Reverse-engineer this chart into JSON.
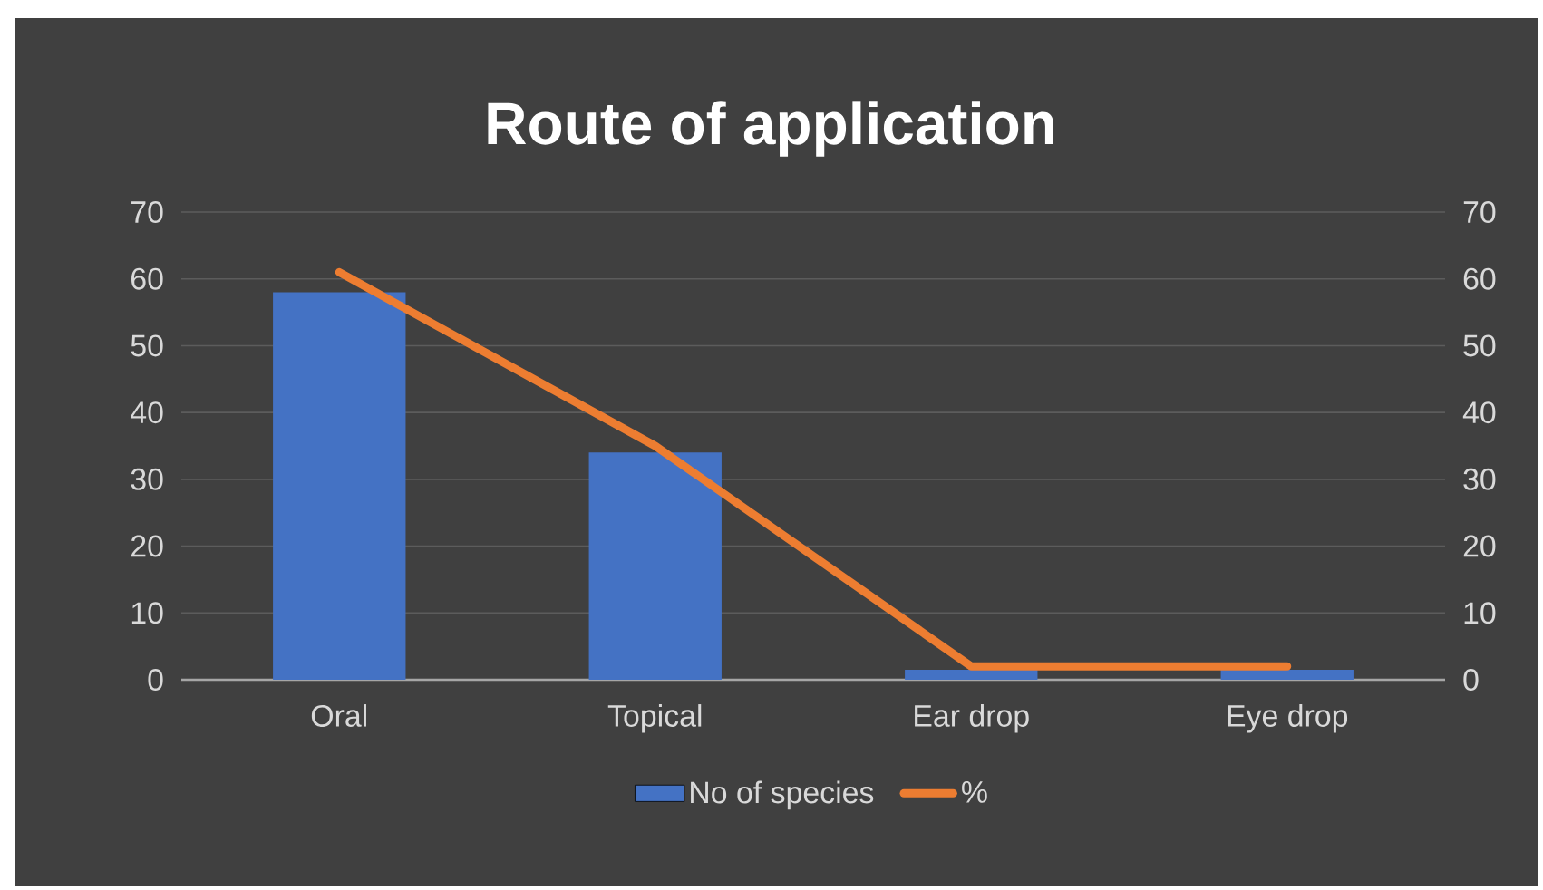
{
  "chart_data": {
    "type": "bar",
    "title": "Route of application",
    "categories": [
      "Oral",
      "Topical",
      "Ear drop",
      "Eye drop"
    ],
    "series": [
      {
        "name": "No of species",
        "color": "#4472c4",
        "values": [
          58,
          34,
          1.5,
          1.5
        ]
      },
      {
        "name": "%",
        "type": "line",
        "axis": "y2",
        "color": "#ed7d31",
        "values": [
          61,
          35,
          2,
          2
        ]
      }
    ],
    "ylim": [
      0,
      70
    ],
    "yticks": [
      0,
      10,
      20,
      30,
      40,
      50,
      60,
      70
    ],
    "y2lim": [
      0,
      70
    ],
    "y2ticks": [
      0,
      10,
      20,
      30,
      40,
      50,
      60,
      70
    ],
    "grid": "y",
    "legend": "bottom"
  }
}
